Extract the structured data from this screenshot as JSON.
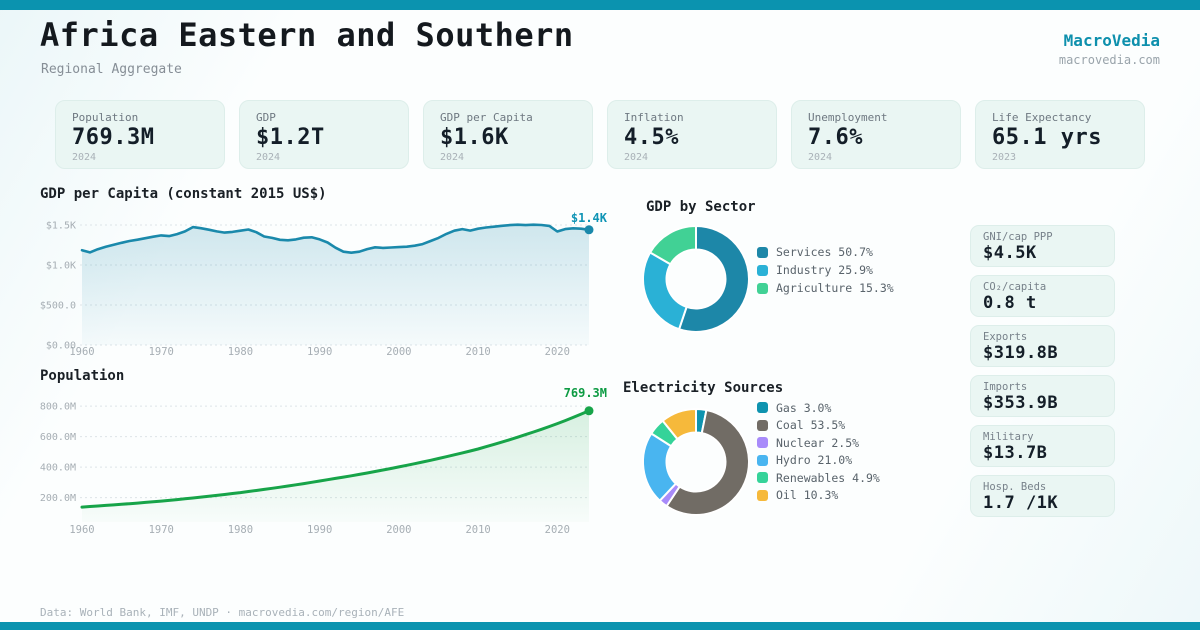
{
  "accent_color": "#0b93af",
  "brand": {
    "name": "MacroVedia",
    "site": "macrovedia.com",
    "color": "#0e90ad"
  },
  "header": {
    "title": "Africa Eastern and Southern",
    "subtitle": "Regional Aggregate"
  },
  "stat_cards": [
    {
      "label": "Population",
      "value": "769.3M",
      "year": "2024"
    },
    {
      "label": "GDP",
      "value": "$1.2T",
      "year": "2024"
    },
    {
      "label": "GDP per Capita",
      "value": "$1.6K",
      "year": "2024"
    },
    {
      "label": "Inflation",
      "value": "4.5%",
      "year": "2024"
    },
    {
      "label": "Unemployment",
      "value": "7.6%",
      "year": "2024"
    },
    {
      "label": "Life Expectancy",
      "value": "65.1 yrs",
      "year": "2023"
    }
  ],
  "side_cards": [
    {
      "label": "GNI/cap PPP",
      "value": "$4.5K"
    },
    {
      "label": "CO₂/capita",
      "value": "0.8 t"
    },
    {
      "label": "Exports",
      "value": "$319.8B"
    },
    {
      "label": "Imports",
      "value": "$353.9B"
    },
    {
      "label": "Military",
      "value": "$13.7B"
    },
    {
      "label": "Hosp. Beds",
      "value": "1.7 /1K"
    }
  ],
  "chart_data": [
    {
      "type": "area",
      "title": "GDP per Capita (constant 2015 US$)",
      "x_start": 1960,
      "x_end": 2024,
      "xticks": [
        1960,
        1970,
        1980,
        1990,
        2000,
        2010,
        2020
      ],
      "yticks": [
        {
          "value": 1500,
          "label": "$1.5K"
        },
        {
          "value": 1000,
          "label": "$1.0K"
        },
        {
          "value": 500,
          "label": "$500.0"
        },
        {
          "value": 0,
          "label": "$0.00"
        }
      ],
      "ylim": [
        0,
        1600
      ],
      "grid": true,
      "line_color": "#1a89ab",
      "fill_from": "rgba(26,137,171,0.20)",
      "fill_to": "rgba(26,137,171,0.03)",
      "end_label": "$1.4K",
      "end_label_color": "#0f94b5",
      "values": [
        1185,
        1158,
        1198,
        1228,
        1252,
        1278,
        1300,
        1316,
        1335,
        1354,
        1370,
        1361,
        1386,
        1420,
        1474,
        1460,
        1441,
        1420,
        1405,
        1414,
        1429,
        1444,
        1410,
        1356,
        1339,
        1315,
        1309,
        1320,
        1341,
        1346,
        1320,
        1281,
        1216,
        1166,
        1154,
        1166,
        1199,
        1221,
        1214,
        1219,
        1224,
        1229,
        1241,
        1261,
        1300,
        1339,
        1389,
        1429,
        1449,
        1430,
        1454,
        1469,
        1479,
        1490,
        1499,
        1504,
        1499,
        1504,
        1500,
        1489,
        1419,
        1449,
        1459,
        1454,
        1440
      ]
    },
    {
      "type": "area",
      "title": "Population",
      "x_start": 1960,
      "x_end": 2024,
      "xticks": [
        1960,
        1970,
        1980,
        1990,
        2000,
        2010,
        2020
      ],
      "yticks": [
        {
          "value": 800,
          "label": "800.0M"
        },
        {
          "value": 600,
          "label": "600.0M"
        },
        {
          "value": 400,
          "label": "400.0M"
        },
        {
          "value": 200,
          "label": "200.0M"
        }
      ],
      "ylim": [
        40,
        840
      ],
      "grid": true,
      "line_color": "#17a449",
      "fill_from": "rgba(23,164,73,0.16)",
      "fill_to": "rgba(23,164,73,0.02)",
      "end_label": "769.3M",
      "end_label_color": "#0d9b43",
      "values": [
        138,
        141.5,
        145,
        148.7,
        152.4,
        156.3,
        160.2,
        164.2,
        168.4,
        172.6,
        177,
        181.9,
        187,
        192.2,
        197.6,
        203.1,
        208.8,
        214.6,
        220.6,
        226.7,
        233,
        239.7,
        246.5,
        253.6,
        260.8,
        268.3,
        275.9,
        283.8,
        291.9,
        300.3,
        309,
        317.2,
        325.6,
        334.2,
        343,
        352.1,
        361.4,
        371,
        380.8,
        390.8,
        401,
        411.5,
        422.2,
        433.3,
        444.6,
        456.2,
        468.2,
        480.4,
        493,
        505.9,
        519,
        533.6,
        548.6,
        564,
        579.9,
        596.2,
        612.9,
        630.2,
        647.9,
        666.1,
        685,
        705.2,
        726,
        747.4,
        769.3
      ]
    },
    {
      "type": "donut",
      "title": "GDP by Sector",
      "legend_position": "right",
      "slices": [
        {
          "label": "Services",
          "pct": 50.7,
          "pct_label": "50.7%",
          "color": "#1d87a8"
        },
        {
          "label": "Industry",
          "pct": 25.9,
          "pct_label": "25.9%",
          "color": "#2ab1d6"
        },
        {
          "label": "Agriculture",
          "pct": 15.3,
          "pct_label": "15.3%",
          "color": "#41d195"
        }
      ]
    },
    {
      "type": "donut",
      "title": "Electricity Sources",
      "legend_position": "right",
      "slices": [
        {
          "label": "Gas",
          "pct": 3.0,
          "pct_label": "3.0%",
          "color": "#0e93af"
        },
        {
          "label": "Coal",
          "pct": 53.5,
          "pct_label": "53.5%",
          "color": "#716c65"
        },
        {
          "label": "Nuclear",
          "pct": 2.5,
          "pct_label": "2.5%",
          "color": "#a88bfa"
        },
        {
          "label": "Hydro",
          "pct": 21.0,
          "pct_label": "21.0%",
          "color": "#49b5f0"
        },
        {
          "label": "Renewables",
          "pct": 4.9,
          "pct_label": "4.9%",
          "color": "#35d399"
        },
        {
          "label": "Oil",
          "pct": 10.3,
          "pct_label": "10.3%",
          "color": "#f6b93b"
        }
      ]
    }
  ],
  "footer": {
    "text": "Data: World Bank, IMF, UNDP · macrovedia.com/region/AFE"
  }
}
